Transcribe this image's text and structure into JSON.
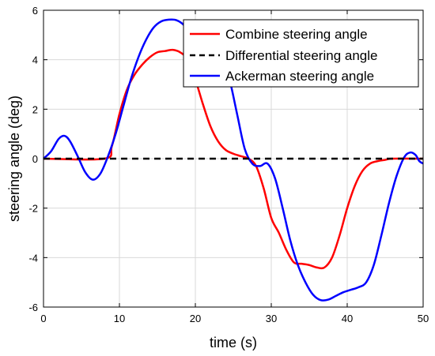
{
  "chart_data": {
    "type": "line",
    "xlabel": "time (s)",
    "ylabel": "steering angle (deg)",
    "xlim": [
      0,
      50
    ],
    "ylim": [
      -6,
      6
    ],
    "xticks": [
      "0",
      "10",
      "20",
      "30",
      "40",
      "50"
    ],
    "yticks": [
      "-6",
      "-4",
      "-2",
      "0",
      "2",
      "4",
      "6"
    ],
    "grid": true,
    "legend_position": "top-right",
    "series": [
      {
        "name": "Combine steering angle",
        "color": "#ff0000",
        "style": "solid",
        "points": [
          [
            0,
            0
          ],
          [
            8,
            0
          ],
          [
            9,
            0.5
          ],
          [
            10,
            1.8
          ],
          [
            11,
            2.8
          ],
          [
            12,
            3.4
          ],
          [
            13,
            3.8
          ],
          [
            14,
            4.1
          ],
          [
            15,
            4.3
          ],
          [
            16,
            4.35
          ],
          [
            17,
            4.4
          ],
          [
            18,
            4.3
          ],
          [
            19,
            4.0
          ],
          [
            20,
            3.2
          ],
          [
            21,
            2.2
          ],
          [
            22,
            1.3
          ],
          [
            23,
            0.7
          ],
          [
            24,
            0.35
          ],
          [
            25,
            0.2
          ],
          [
            26,
            0.1
          ],
          [
            27,
            0.0
          ],
          [
            28,
            -0.3
          ],
          [
            29,
            -1.2
          ],
          [
            30,
            -2.4
          ],
          [
            31,
            -3.0
          ],
          [
            32,
            -3.7
          ],
          [
            33,
            -4.2
          ],
          [
            34,
            -4.25
          ],
          [
            35,
            -4.3
          ],
          [
            36,
            -4.4
          ],
          [
            37,
            -4.4
          ],
          [
            38,
            -4.0
          ],
          [
            39,
            -3.1
          ],
          [
            40,
            -2.0
          ],
          [
            41,
            -1.1
          ],
          [
            42,
            -0.5
          ],
          [
            43,
            -0.2
          ],
          [
            44,
            -0.1
          ],
          [
            45,
            -0.05
          ],
          [
            46,
            0
          ],
          [
            50,
            0
          ]
        ]
      },
      {
        "name": "Differential steering angle",
        "color": "#000000",
        "style": "dashed",
        "points": [
          [
            0,
            0
          ],
          [
            50,
            0
          ]
        ]
      },
      {
        "name": "Ackerman steering angle",
        "color": "#0000ff",
        "style": "solid",
        "points": [
          [
            0,
            0
          ],
          [
            1,
            0.3
          ],
          [
            2,
            0.8
          ],
          [
            2.8,
            0.92
          ],
          [
            3.5,
            0.7
          ],
          [
            4.5,
            0.1
          ],
          [
            5.5,
            -0.55
          ],
          [
            6.5,
            -0.85
          ],
          [
            7.5,
            -0.6
          ],
          [
            8.5,
            0.1
          ],
          [
            9.5,
            1.0
          ],
          [
            10.5,
            2.1
          ],
          [
            11.5,
            3.2
          ],
          [
            12.5,
            4.1
          ],
          [
            13.5,
            4.8
          ],
          [
            14.5,
            5.3
          ],
          [
            15.5,
            5.55
          ],
          [
            16.5,
            5.62
          ],
          [
            17.5,
            5.6
          ],
          [
            18.5,
            5.4
          ],
          [
            19.5,
            5.0
          ],
          [
            20.5,
            4.6
          ],
          [
            21.5,
            4.3
          ],
          [
            22.5,
            4.3
          ],
          [
            23.5,
            4.1
          ],
          [
            24.5,
            3.2
          ],
          [
            25.5,
            1.8
          ],
          [
            26.5,
            0.4
          ],
          [
            27.5,
            -0.2
          ],
          [
            28.5,
            -0.3
          ],
          [
            29.5,
            -0.2
          ],
          [
            30.5,
            -0.8
          ],
          [
            31.5,
            -2.0
          ],
          [
            32.5,
            -3.3
          ],
          [
            33.5,
            -4.3
          ],
          [
            34.5,
            -5.0
          ],
          [
            35.5,
            -5.5
          ],
          [
            36.5,
            -5.72
          ],
          [
            37.5,
            -5.7
          ],
          [
            38.5,
            -5.55
          ],
          [
            39.5,
            -5.4
          ],
          [
            40.5,
            -5.3
          ],
          [
            41.5,
            -5.2
          ],
          [
            42.5,
            -5.0
          ],
          [
            43.5,
            -4.3
          ],
          [
            44.5,
            -3.1
          ],
          [
            45.5,
            -1.8
          ],
          [
            46.5,
            -0.7
          ],
          [
            47.5,
            0.05
          ],
          [
            48.3,
            0.25
          ],
          [
            49,
            0.15
          ],
          [
            49.5,
            -0.1
          ],
          [
            50,
            -0.2
          ]
        ]
      }
    ]
  }
}
